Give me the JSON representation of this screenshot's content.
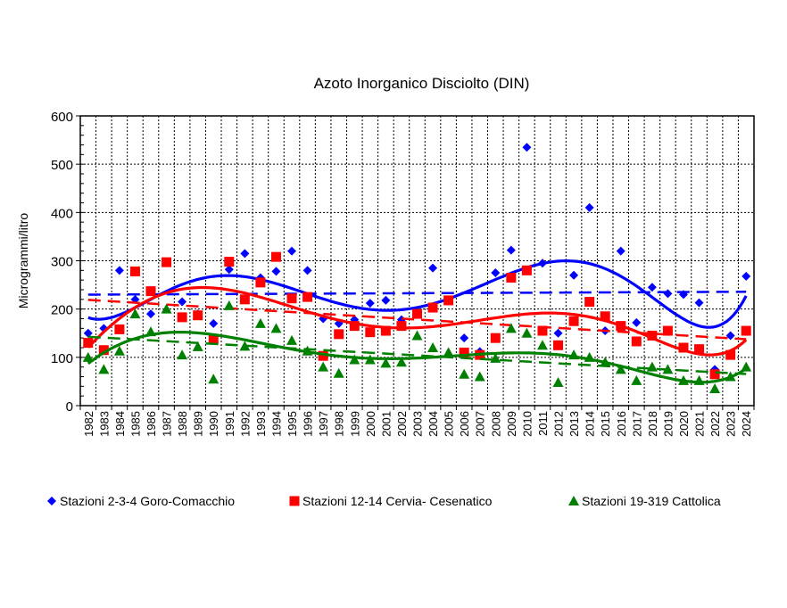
{
  "chart_data": {
    "type": "scatter",
    "title": "Azoto Inorganico Disciolto (DIN)",
    "xlabel": "",
    "ylabel": "Microgrammi/litro",
    "ylim": [
      0,
      600
    ],
    "yticks": [
      0,
      100,
      200,
      300,
      400,
      500,
      600
    ],
    "grid": true,
    "legend": "bottom",
    "trendlines": [
      "polynomial",
      "linear"
    ],
    "x": [
      1982,
      1983,
      1984,
      1985,
      1986,
      1987,
      1988,
      1989,
      1990,
      1991,
      1992,
      1993,
      1994,
      1995,
      1996,
      1997,
      1998,
      1999,
      2000,
      2001,
      2002,
      2003,
      2004,
      2005,
      2006,
      2007,
      2008,
      2009,
      2010,
      2011,
      2012,
      2013,
      2014,
      2015,
      2016,
      2017,
      2018,
      2019,
      2020,
      2021,
      2022,
      2023,
      2024
    ],
    "series": [
      {
        "name": "Stazioni 2-3-4 Goro-Comacchio",
        "color": "#0000ff",
        "marker": "diamond",
        "values": [
          150,
          160,
          280,
          220,
          190,
          298,
          215,
          190,
          170,
          282,
          315,
          265,
          278,
          320,
          280,
          180,
          170,
          178,
          212,
          218,
          178,
          195,
          285,
          218,
          140,
          112,
          275,
          322,
          535,
          295,
          150,
          270,
          410,
          155,
          320,
          172,
          245,
          232,
          230,
          213,
          75,
          145,
          268
        ]
      },
      {
        "name": "Stazioni 12-14 Cervia- Cesenatico",
        "color": "#ff0000",
        "marker": "square",
        "values": [
          130,
          115,
          158,
          278,
          237,
          297,
          183,
          187,
          138,
          298,
          220,
          255,
          308,
          222,
          225,
          103,
          148,
          165,
          152,
          155,
          165,
          190,
          203,
          218,
          110,
          105,
          140,
          265,
          280,
          155,
          125,
          175,
          215,
          185,
          165,
          133,
          145,
          155,
          120,
          117,
          65,
          105,
          155
        ]
      },
      {
        "name": "Stazioni 19-319 Cattolica",
        "color": "#008000",
        "marker": "triangle",
        "values": [
          100,
          75,
          113,
          190,
          153,
          200,
          105,
          122,
          55,
          207,
          123,
          170,
          160,
          135,
          113,
          80,
          67,
          95,
          95,
          88,
          90,
          145,
          120,
          110,
          65,
          60,
          98,
          160,
          150,
          125,
          48,
          105,
          100,
          90,
          75,
          52,
          80,
          75,
          52,
          52,
          35,
          60,
          80
        ]
      }
    ]
  }
}
